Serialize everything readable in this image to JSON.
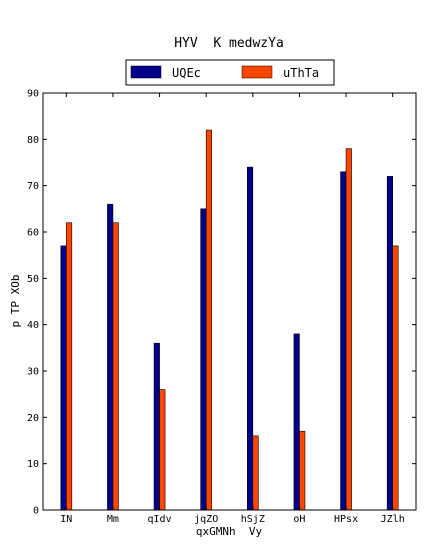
{
  "chart_data": {
    "type": "bar",
    "title": "HYV  K medwzYa",
    "xlabel": "qxGMNh  Vy",
    "ylabel": "p TP XOb",
    "categories": [
      "IN",
      "Mm",
      "qIdv",
      "jqZO",
      "hSjZ",
      "oH",
      "HPsx",
      "JZlh"
    ],
    "series": [
      {
        "name": "UQEc",
        "color": "#00008b",
        "values": [
          57,
          66,
          36,
          65,
          74,
          38,
          73,
          72
        ]
      },
      {
        "name": "uThTa",
        "color": "#ff4500",
        "values": [
          62,
          62,
          26,
          82,
          16,
          17,
          78,
          57
        ]
      }
    ],
    "ylim": [
      0,
      90
    ],
    "yticks": [
      0,
      10,
      20,
      30,
      40,
      50,
      60,
      70,
      80,
      90
    ],
    "grid": false,
    "legend_position": "top-center"
  }
}
